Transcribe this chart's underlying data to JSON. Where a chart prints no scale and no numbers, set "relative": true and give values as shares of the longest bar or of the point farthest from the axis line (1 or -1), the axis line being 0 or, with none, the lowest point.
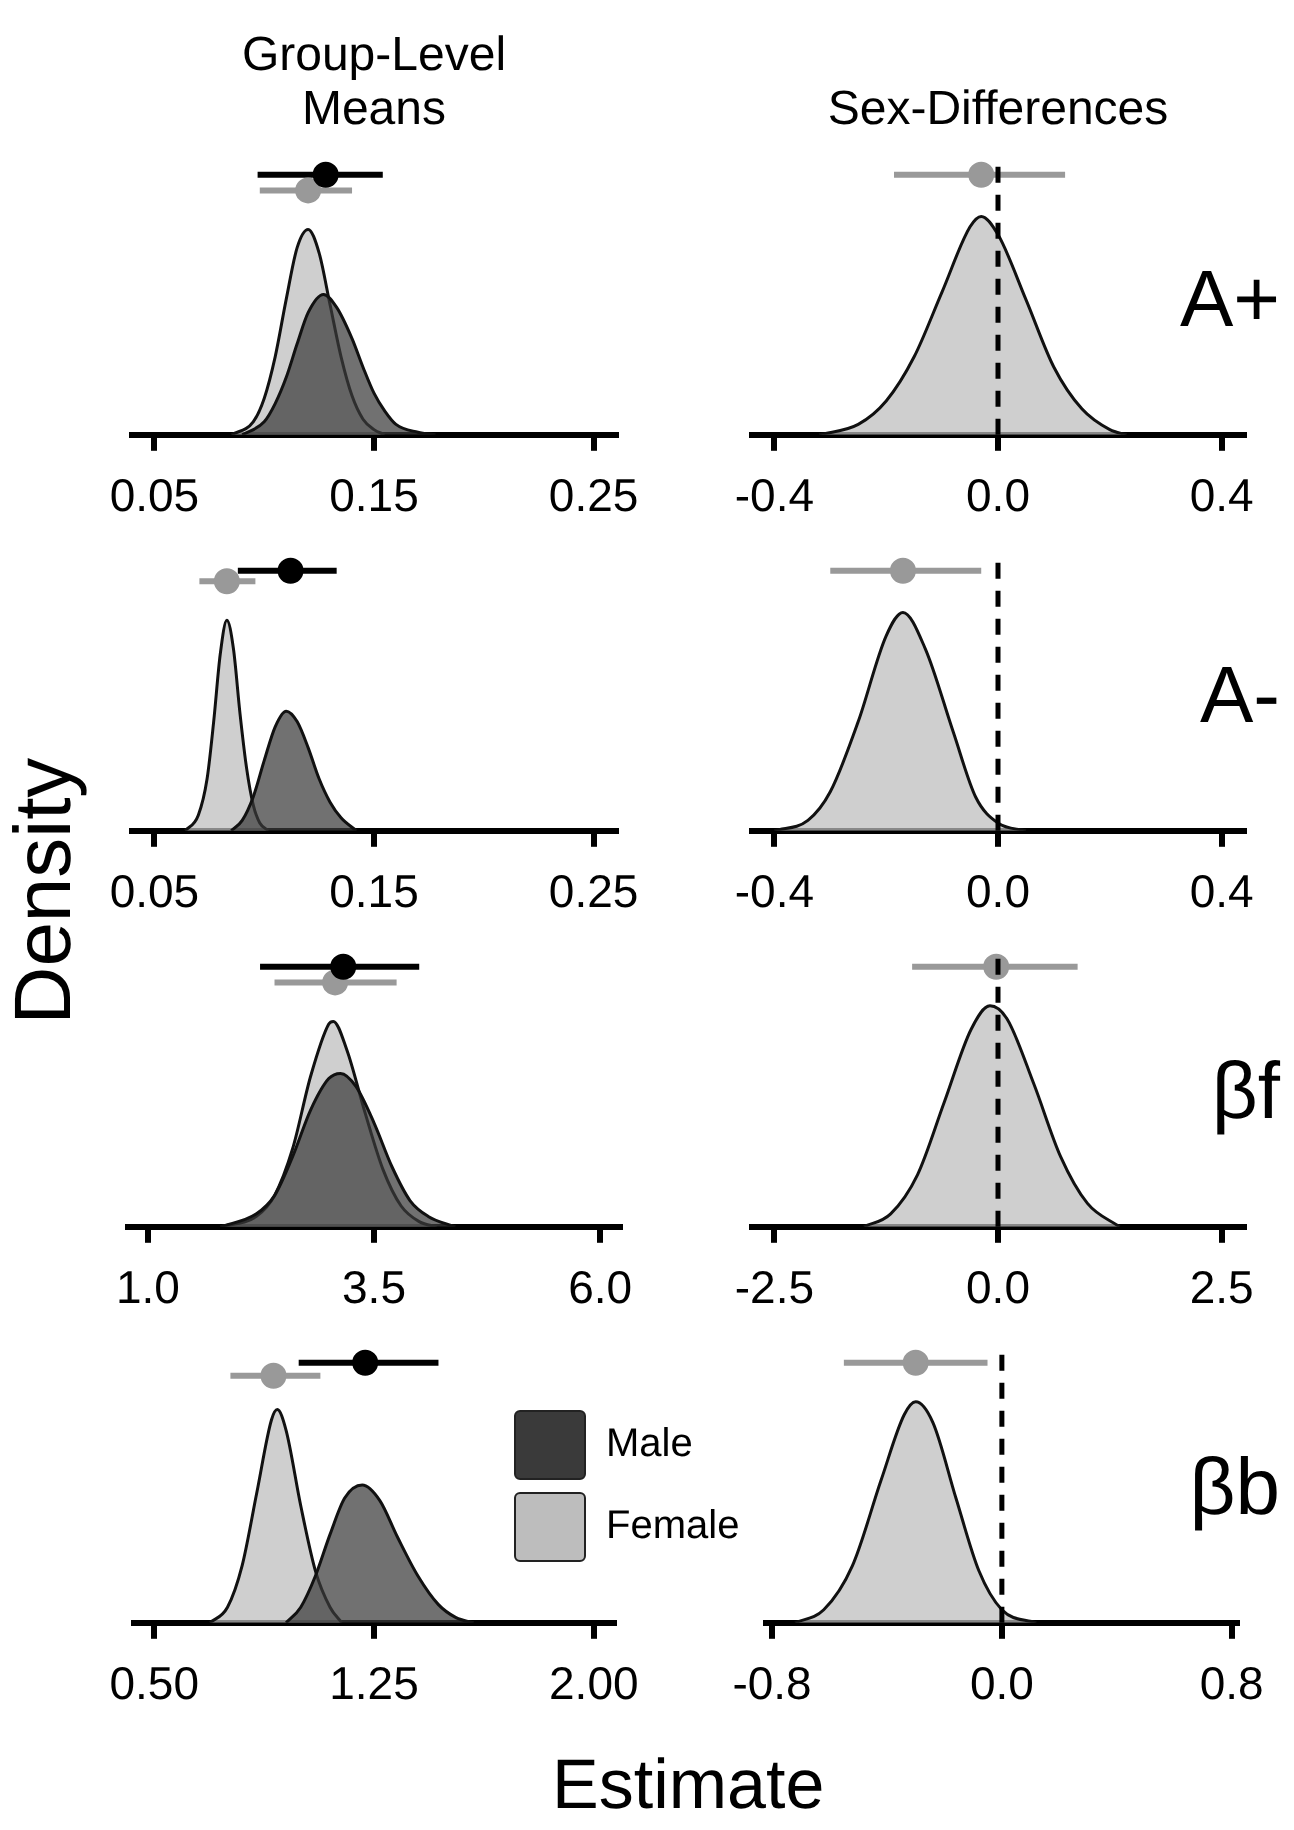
{
  "chart_data": [
    {
      "type": "area",
      "title": "Group-Level Means",
      "ylabel": "Density",
      "relative": true,
      "xlim": [
        0.04,
        0.26
      ],
      "xticks": [
        0.05,
        0.15,
        0.25
      ],
      "tick_labels": "x",
      "series": [
        {
          "color": "#3a3a3a",
          "x": [
            0.09,
            0.1,
            0.105,
            0.11,
            0.115,
            0.12,
            0.127,
            0.133,
            0.14,
            0.145,
            0.15,
            0.155,
            0.16,
            0.17,
            0.178
          ],
          "values": [
            0,
            0.05,
            0.12,
            0.22,
            0.35,
            0.47,
            0.54,
            0.49,
            0.37,
            0.26,
            0.16,
            0.09,
            0.04,
            0.01,
            0
          ]
        },
        {
          "color": "#bdbdbd",
          "x": [
            0.085,
            0.095,
            0.1,
            0.105,
            0.11,
            0.115,
            0.12,
            0.125,
            0.13,
            0.135,
            0.14,
            0.145,
            0.15,
            0.155
          ],
          "values": [
            0,
            0.05,
            0.14,
            0.3,
            0.52,
            0.72,
            0.79,
            0.7,
            0.5,
            0.3,
            0.15,
            0.06,
            0.02,
            0
          ]
        },
        {
          "type": "scatter",
          "marker": "circle",
          "color": "#000000",
          "x": [
            0.128
          ],
          "values": [
            1
          ],
          "xerrors": [
            [
              0.097,
              0.154
            ]
          ]
        },
        {
          "type": "scatter",
          "marker": "circle",
          "color": "#999999",
          "x": [
            0.12
          ],
          "values": [
            0.94
          ],
          "xerrors": [
            [
              0.098,
              0.14
            ]
          ]
        }
      ]
    },
    {
      "type": "area",
      "title": "Sex-Differences",
      "relative": true,
      "xlim": [
        -0.44,
        0.44
      ],
      "xticks": [
        -0.4,
        {
          "value": 0,
          "label": "0.0"
        },
        0.4
      ],
      "tick_labels": "x",
      "annotations": [
        "A+"
      ],
      "ref_lines": [
        {
          "axis": "x",
          "value": 0,
          "line_style": "dashed",
          "color": "#000000"
        }
      ],
      "series": [
        {
          "color": "#bdbdbd",
          "x": [
            -0.32,
            -0.25,
            -0.2,
            -0.15,
            -0.1,
            -0.05,
            -0.03,
            0,
            0.05,
            0.1,
            0.15,
            0.2,
            0.23
          ],
          "values": [
            0,
            0.04,
            0.13,
            0.3,
            0.55,
            0.8,
            0.84,
            0.77,
            0.52,
            0.26,
            0.1,
            0.02,
            0
          ]
        },
        {
          "type": "scatter",
          "marker": "circle",
          "color": "#999999",
          "x": [
            -0.03
          ],
          "values": [
            1
          ],
          "xerrors": [
            [
              -0.186,
              0.12
            ]
          ]
        }
      ]
    },
    {
      "type": "area",
      "relative": true,
      "xlim": [
        0.04,
        0.26
      ],
      "xticks": [
        0.05,
        0.15,
        0.25
      ],
      "tick_labels": "x",
      "series": [
        {
          "color": "#3a3a3a",
          "x": [
            0.085,
            0.09,
            0.095,
            0.1,
            0.105,
            0.11,
            0.115,
            0.12,
            0.125,
            0.13,
            0.135,
            0.142
          ],
          "values": [
            0,
            0.04,
            0.13,
            0.27,
            0.4,
            0.46,
            0.42,
            0.32,
            0.2,
            0.11,
            0.05,
            0
          ]
        },
        {
          "color": "#bdbdbd",
          "x": [
            0.064,
            0.07,
            0.074,
            0.077,
            0.08,
            0.083,
            0.086,
            0.089,
            0.092,
            0.095,
            0.098,
            0.102
          ],
          "values": [
            0,
            0.06,
            0.2,
            0.42,
            0.68,
            0.81,
            0.7,
            0.45,
            0.24,
            0.1,
            0.03,
            0
          ]
        },
        {
          "type": "scatter",
          "marker": "circle",
          "color": "#000000",
          "x": [
            0.112
          ],
          "values": [
            1
          ],
          "xerrors": [
            [
              0.088,
              0.133
            ]
          ]
        },
        {
          "type": "scatter",
          "marker": "circle",
          "color": "#999999",
          "x": [
            0.083
          ],
          "values": [
            0.96
          ],
          "xerrors": [
            [
              0.0705,
              0.096
            ]
          ]
        }
      ]
    },
    {
      "type": "area",
      "relative": true,
      "xlim": [
        -0.44,
        0.44
      ],
      "xticks": [
        -0.4,
        {
          "value": 0,
          "label": "0.0"
        },
        0.4
      ],
      "tick_labels": "x",
      "annotations": [
        "A-"
      ],
      "ref_lines": [
        {
          "axis": "x",
          "value": 0,
          "line_style": "dashed",
          "color": "#000000"
        }
      ],
      "series": [
        {
          "color": "#bdbdbd",
          "x": [
            -0.4,
            -0.34,
            -0.3,
            -0.25,
            -0.2,
            -0.17,
            -0.13,
            -0.08,
            -0.04,
            0,
            0.05
          ],
          "values": [
            0,
            0.04,
            0.15,
            0.42,
            0.75,
            0.84,
            0.7,
            0.38,
            0.13,
            0.03,
            0
          ]
        },
        {
          "type": "scatter",
          "marker": "circle",
          "color": "#999999",
          "x": [
            -0.17
          ],
          "values": [
            1
          ],
          "xerrors": [
            [
              -0.3,
              -0.03
            ]
          ]
        }
      ]
    },
    {
      "type": "area",
      "relative": true,
      "xlim": [
        0.78,
        6.22
      ],
      "xticks": [
        {
          "value": 1,
          "label": "1.0"
        },
        3.5,
        {
          "value": 6,
          "label": "6.0"
        }
      ],
      "tick_labels": "x",
      "series": [
        {
          "color": "#3a3a3a",
          "x": [
            1.8,
            2.2,
            2.4,
            2.6,
            2.8,
            3,
            3.13,
            3.3,
            3.5,
            3.7,
            3.9,
            4.1,
            4.4
          ],
          "values": [
            0,
            0.05,
            0.12,
            0.27,
            0.45,
            0.57,
            0.59,
            0.54,
            0.4,
            0.23,
            0.1,
            0.04,
            0
          ]
        },
        {
          "color": "#bdbdbd",
          "x": [
            1.8,
            2.2,
            2.4,
            2.6,
            2.8,
            3,
            3.05,
            3.2,
            3.4,
            3.6,
            3.8,
            4,
            4.2
          ],
          "values": [
            0,
            0.04,
            0.12,
            0.3,
            0.58,
            0.78,
            0.79,
            0.68,
            0.44,
            0.22,
            0.08,
            0.02,
            0
          ]
        },
        {
          "type": "scatter",
          "marker": "circle",
          "color": "#000000",
          "x": [
            3.16
          ],
          "values": [
            1
          ],
          "xerrors": [
            [
              2.24,
              4
            ]
          ]
        },
        {
          "type": "scatter",
          "marker": "circle",
          "color": "#999999",
          "x": [
            3.07
          ],
          "values": [
            0.94
          ],
          "xerrors": [
            [
              2.4,
              3.75
            ]
          ]
        }
      ]
    },
    {
      "type": "area",
      "relative": true,
      "xlim": [
        -2.75,
        2.75
      ],
      "xticks": [
        -2.5,
        {
          "value": 0,
          "label": "0.0"
        },
        2.5
      ],
      "tick_labels": "x",
      "annotations": [
        "βf"
      ],
      "ref_lines": [
        {
          "axis": "x",
          "value": 0,
          "line_style": "dashed",
          "color": "#000000"
        }
      ],
      "series": [
        {
          "color": "#bdbdbd",
          "x": [
            -1.5,
            -1.2,
            -0.9,
            -0.6,
            -0.3,
            -0.09,
            0.1,
            0.4,
            0.7,
            1,
            1.36
          ],
          "values": [
            0,
            0.05,
            0.2,
            0.48,
            0.76,
            0.85,
            0.8,
            0.55,
            0.27,
            0.09,
            0
          ]
        },
        {
          "type": "scatter",
          "marker": "circle",
          "color": "#999999",
          "x": [
            -0.02
          ],
          "values": [
            1
          ],
          "xerrors": [
            [
              -0.96,
              0.89
            ]
          ]
        }
      ]
    },
    {
      "type": "area",
      "xlabel": "Estimate",
      "legend": "right",
      "relative": true,
      "xlim": [
        0.43,
        2.07
      ],
      "xticks": [
        {
          "value": 0.5,
          "label": "0.50"
        },
        1.25,
        {
          "value": 2,
          "label": "2.00"
        }
      ],
      "tick_labels": "x",
      "series": [
        {
          "name": "Male",
          "color": "#3a3a3a",
          "x": [
            0.95,
            1,
            1.05,
            1.1,
            1.15,
            1.21,
            1.27,
            1.33,
            1.4,
            1.47,
            1.53,
            1.59
          ],
          "values": [
            0,
            0.06,
            0.18,
            0.34,
            0.48,
            0.53,
            0.47,
            0.33,
            0.18,
            0.07,
            0.02,
            0
          ]
        },
        {
          "name": "Female",
          "color": "#bdbdbd",
          "x": [
            0.69,
            0.75,
            0.8,
            0.85,
            0.9,
            0.92,
            0.95,
            1,
            1.05,
            1.1,
            1.14
          ],
          "values": [
            0,
            0.06,
            0.22,
            0.5,
            0.78,
            0.82,
            0.74,
            0.45,
            0.2,
            0.06,
            0
          ]
        },
        {
          "type": "scatter",
          "marker": "circle",
          "color": "#000000",
          "x": [
            1.22
          ],
          "values": [
            1
          ],
          "xerrors": [
            [
              0.993,
              1.47
            ]
          ]
        },
        {
          "type": "scatter",
          "marker": "circle",
          "color": "#999999",
          "x": [
            0.907
          ],
          "values": [
            0.95
          ],
          "xerrors": [
            [
              0.76,
              1.067
            ]
          ]
        }
      ]
    },
    {
      "type": "area",
      "relative": true,
      "xlim": [
        -0.82,
        0.82
      ],
      "xticks": [
        -0.8,
        {
          "value": 0,
          "label": "0.0"
        },
        0.8
      ],
      "tick_labels": "x",
      "annotations": [
        "βb"
      ],
      "ref_lines": [
        {
          "axis": "x",
          "value": 0,
          "line_style": "dashed",
          "color": "#000000"
        }
      ],
      "series": [
        {
          "color": "#bdbdbd",
          "x": [
            -0.72,
            -0.62,
            -0.52,
            -0.42,
            -0.34,
            -0.3,
            -0.24,
            -0.16,
            -0.08,
            0,
            0.12
          ],
          "values": [
            0,
            0.05,
            0.22,
            0.55,
            0.8,
            0.85,
            0.77,
            0.48,
            0.2,
            0.05,
            0
          ]
        },
        {
          "type": "scatter",
          "marker": "circle",
          "color": "#999999",
          "x": [
            -0.3
          ],
          "values": [
            1
          ],
          "xerrors": [
            [
              -0.55,
              -0.05
            ]
          ]
        }
      ]
    }
  ]
}
